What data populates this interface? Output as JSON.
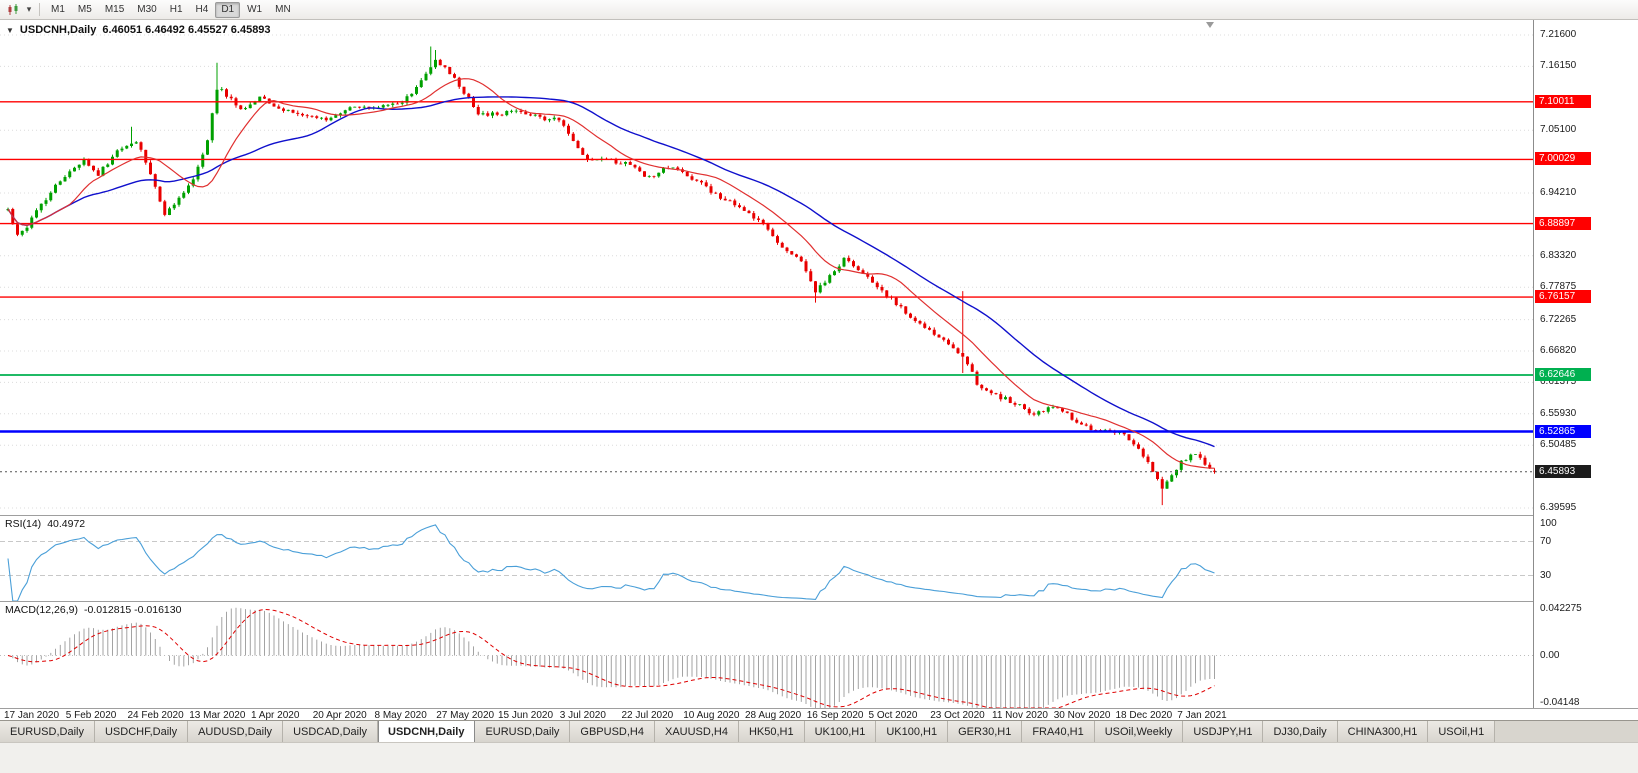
{
  "toolbar": {
    "timeframes": [
      "M1",
      "M5",
      "M15",
      "M30",
      "H1",
      "H4",
      "D1",
      "W1",
      "MN"
    ],
    "active_timeframe": "D1"
  },
  "chart": {
    "title": "USDCNH,Daily",
    "ohlc_text": "6.46051 6.46492 6.45527 6.45893",
    "open": "6.46051",
    "high": "6.46492",
    "low": "6.45527",
    "close": "6.45893",
    "price_max": 7.242,
    "price_min": 6.3838,
    "current_price": 6.45893,
    "axis_labels": [
      {
        "text": "7.21600",
        "value": 7.216
      },
      {
        "text": "7.16150",
        "value": 7.1615
      },
      {
        "text": "7.05100",
        "value": 7.051
      },
      {
        "text": "6.94210",
        "value": 6.9421
      },
      {
        "text": "6.83320",
        "value": 6.8332
      },
      {
        "text": "6.77875",
        "value": 6.77875
      },
      {
        "text": "6.72265",
        "value": 6.72265
      },
      {
        "text": "6.66820",
        "value": 6.6682
      },
      {
        "text": "6.61375",
        "value": 6.61375
      },
      {
        "text": "6.55930",
        "value": 6.5593
      },
      {
        "text": "6.50485",
        "value": 6.50485
      },
      {
        "text": "6.39595",
        "value": 6.39595
      }
    ],
    "price_tags": [
      {
        "text": "7.10011",
        "value": 7.10011,
        "color": "#FF0000"
      },
      {
        "text": "7.00029",
        "value": 7.00029,
        "color": "#FF0000"
      },
      {
        "text": "6.88897",
        "value": 6.88897,
        "color": "#FF0000"
      },
      {
        "text": "6.76157",
        "value": 6.76157,
        "color": "#FF0000"
      },
      {
        "text": "6.62646",
        "value": 6.62646,
        "color": "#00B050"
      },
      {
        "text": "6.52865",
        "value": 6.52865,
        "color": "#0000FF"
      },
      {
        "text": "6.45893",
        "value": 6.45893,
        "color": "#1C1C1C"
      }
    ],
    "hlines": [
      {
        "value": 7.10011,
        "color": "#FF0000",
        "width": 1.4
      },
      {
        "value": 7.00029,
        "color": "#FF0000",
        "width": 1.4
      },
      {
        "value": 6.88897,
        "color": "#FF0000",
        "width": 1.4
      },
      {
        "value": 6.76157,
        "color": "#FF0000",
        "width": 1.4
      },
      {
        "value": 6.62646,
        "color": "#00B050",
        "width": 1.8
      },
      {
        "value": 6.52865,
        "color": "#0000FF",
        "width": 2.4
      }
    ],
    "colors": {
      "up": "#00A000",
      "down": "#E80000",
      "ma_fast": "#E03030",
      "ma_slow": "#1010CC",
      "grid": "#DCDCDC",
      "current_price_line": "#555555"
    }
  },
  "chart_data": {
    "type": "candlestick",
    "title": "USDCNH,Daily",
    "x_axis_labels": [
      "17 Jan 2020",
      "5 Feb 2020",
      "24 Feb 2020",
      "13 Mar 2020",
      "1 Apr 2020",
      "20 Apr 2020",
      "8 May 2020",
      "27 May 2020",
      "15 Jun 2020",
      "3 Jul 2020",
      "22 Jul 2020",
      "10 Aug 2020",
      "28 Aug 2020",
      "16 Sep 2020",
      "5 Oct 2020",
      "23 Oct 2020",
      "11 Nov 2020",
      "30 Nov 2020",
      "18 Dec 2020",
      "7 Jan 2021"
    ],
    "y_axis_range": [
      6.3838,
      7.242
    ],
    "num_candles": 255,
    "last_candle": {
      "open": 6.46051,
      "high": 6.46492,
      "low": 6.45527,
      "close": 6.45893
    },
    "trend_anchors": [
      [
        0,
        6.915
      ],
      [
        2,
        6.868
      ],
      [
        4,
        6.885
      ],
      [
        9,
        6.945
      ],
      [
        13,
        6.978
      ],
      [
        16,
        7.003
      ],
      [
        19,
        6.972
      ],
      [
        23,
        7.018
      ],
      [
        27,
        7.034
      ],
      [
        30,
        6.975
      ],
      [
        33,
        6.906
      ],
      [
        36,
        6.932
      ],
      [
        39,
        6.965
      ],
      [
        42,
        7.035
      ],
      [
        44,
        7.125
      ],
      [
        46,
        7.112
      ],
      [
        49,
        7.085
      ],
      [
        53,
        7.108
      ],
      [
        57,
        7.088
      ],
      [
        62,
        7.078
      ],
      [
        67,
        7.068
      ],
      [
        72,
        7.09
      ],
      [
        78,
        7.094
      ],
      [
        83,
        7.1
      ],
      [
        87,
        7.135
      ],
      [
        90,
        7.172
      ],
      [
        92,
        7.158
      ],
      [
        96,
        7.118
      ],
      [
        99,
        7.082
      ],
      [
        103,
        7.078
      ],
      [
        107,
        7.088
      ],
      [
        112,
        7.072
      ],
      [
        116,
        7.068
      ],
      [
        119,
        7.032
      ],
      [
        122,
        7.002
      ],
      [
        127,
        6.998
      ],
      [
        131,
        6.992
      ],
      [
        135,
        6.968
      ],
      [
        139,
        6.988
      ],
      [
        143,
        6.972
      ],
      [
        147,
        6.952
      ],
      [
        151,
        6.93
      ],
      [
        155,
        6.912
      ],
      [
        159,
        6.885
      ],
      [
        163,
        6.848
      ],
      [
        167,
        6.822
      ],
      [
        170,
        6.772
      ],
      [
        173,
        6.798
      ],
      [
        176,
        6.828
      ],
      [
        180,
        6.802
      ],
      [
        184,
        6.772
      ],
      [
        188,
        6.742
      ],
      [
        192,
        6.716
      ],
      [
        196,
        6.692
      ],
      [
        199,
        6.672
      ],
      [
        201,
        6.662
      ],
      [
        204,
        6.612
      ],
      [
        208,
        6.592
      ],
      [
        212,
        6.578
      ],
      [
        216,
        6.556
      ],
      [
        220,
        6.572
      ],
      [
        224,
        6.552
      ],
      [
        228,
        6.53
      ],
      [
        232,
        6.528
      ],
      [
        235,
        6.522
      ],
      [
        238,
        6.502
      ],
      [
        241,
        6.462
      ],
      [
        243,
        6.428
      ],
      [
        245,
        6.452
      ],
      [
        247,
        6.476
      ],
      [
        250,
        6.49
      ],
      [
        252,
        6.472
      ],
      [
        254,
        6.459
      ]
    ],
    "wick_overrides": [
      {
        "i": 26,
        "high": 7.057
      },
      {
        "i": 44,
        "high": 7.168
      },
      {
        "i": 89,
        "high": 7.196
      },
      {
        "i": 90,
        "high": 7.19
      },
      {
        "i": 170,
        "low": 6.752
      },
      {
        "i": 201,
        "high": 6.772,
        "low": 6.63
      },
      {
        "i": 243,
        "low": 6.401
      }
    ],
    "noise": {
      "seed": 77,
      "amp": 0.004,
      "wick": 0.0042
    },
    "ma_fast_period": 13,
    "ma_slow_period": 34
  },
  "rsi": {
    "name": "RSI(14)",
    "value": "40.4972",
    "period": 14,
    "line_color": "#4A9FD8",
    "levels": [
      {
        "text": "100",
        "value": 100
      },
      {
        "text": "70",
        "value": 70
      },
      {
        "text": "30",
        "value": 30
      }
    ]
  },
  "macd": {
    "name": "MACD(12,26,9)",
    "values": "-0.012815 -0.016130",
    "fast": 12,
    "slow": 26,
    "signal": 9,
    "max": 0.042275,
    "min": -0.04148,
    "hist_color": "#A3A3A3",
    "signal_color": "#DF0000",
    "axis_labels": [
      {
        "text": "0.042275",
        "value": 0.042275
      },
      {
        "text": "0.00",
        "value": 0
      },
      {
        "text": "-0.04148",
        "value": -0.04148
      }
    ]
  },
  "time_axis": {
    "labels": [
      "17 Jan 2020",
      "5 Feb 2020",
      "24 Feb 2020",
      "13 Mar 2020",
      "1 Apr 2020",
      "20 Apr 2020",
      "8 May 2020",
      "27 May 2020",
      "15 Jun 2020",
      "3 Jul 2020",
      "22 Jul 2020",
      "10 Aug 2020",
      "28 Aug 2020",
      "16 Sep 2020",
      "5 Oct 2020",
      "23 Oct 2020",
      "11 Nov 2020",
      "30 Nov 2020",
      "18 Dec 2020",
      "7 Jan 2021"
    ]
  },
  "tabs": {
    "items": [
      "EURUSD,Daily",
      "USDCHF,Daily",
      "AUDUSD,Daily",
      "USDCAD,Daily",
      "USDCNH,Daily",
      "EURUSD,Daily",
      "GBPUSD,H4",
      "XAUUSD,H4",
      "HK50,H1",
      "UK100,H1",
      "UK100,H1",
      "GER30,H1",
      "FRA40,H1",
      "USOil,Weekly",
      "USDJPY,H1",
      "DJ30,Daily",
      "CHINA300,H1",
      "USOil,H1"
    ],
    "active_index": 4
  }
}
